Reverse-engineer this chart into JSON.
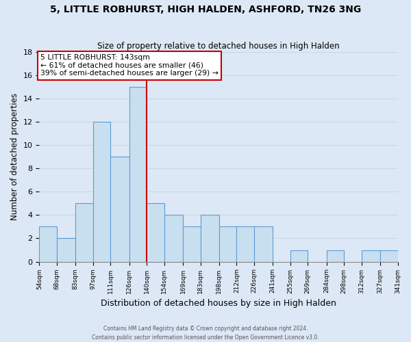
{
  "title": "5, LITTLE ROBHURST, HIGH HALDEN, ASHFORD, TN26 3NG",
  "subtitle": "Size of property relative to detached houses in High Halden",
  "xlabel": "Distribution of detached houses by size in High Halden",
  "ylabel": "Number of detached properties",
  "bin_edges": [
    54,
    68,
    83,
    97,
    111,
    126,
    140,
    154,
    169,
    183,
    198,
    212,
    226,
    241,
    255,
    269,
    284,
    298,
    312,
    327,
    341
  ],
  "bar_heights": [
    3,
    2,
    5,
    12,
    9,
    15,
    5,
    4,
    3,
    4,
    3,
    3,
    3,
    0,
    1,
    0,
    1,
    0,
    1,
    1
  ],
  "bar_color": "#c8dff0",
  "bar_edgecolor": "#5b9bd5",
  "grid_color": "#c8d8e8",
  "bg_color": "#dce8f5",
  "property_line_x": 140,
  "property_size": 143,
  "annotation_text_line1": "5 LITTLE ROBHURST: 143sqm",
  "annotation_text_line2": "← 61% of detached houses are smaller (46)",
  "annotation_text_line3": "39% of semi-detached houses are larger (29) →",
  "annotation_box_color": "#ffffff",
  "annotation_border_color": "#cc0000",
  "property_line_color": "#cc0000",
  "ylim": [
    0,
    18
  ],
  "yticks": [
    0,
    2,
    4,
    6,
    8,
    10,
    12,
    14,
    16,
    18
  ],
  "footer_line1": "Contains HM Land Registry data © Crown copyright and database right 2024.",
  "footer_line2": "Contains public sector information licensed under the Open Government Licence v3.0."
}
